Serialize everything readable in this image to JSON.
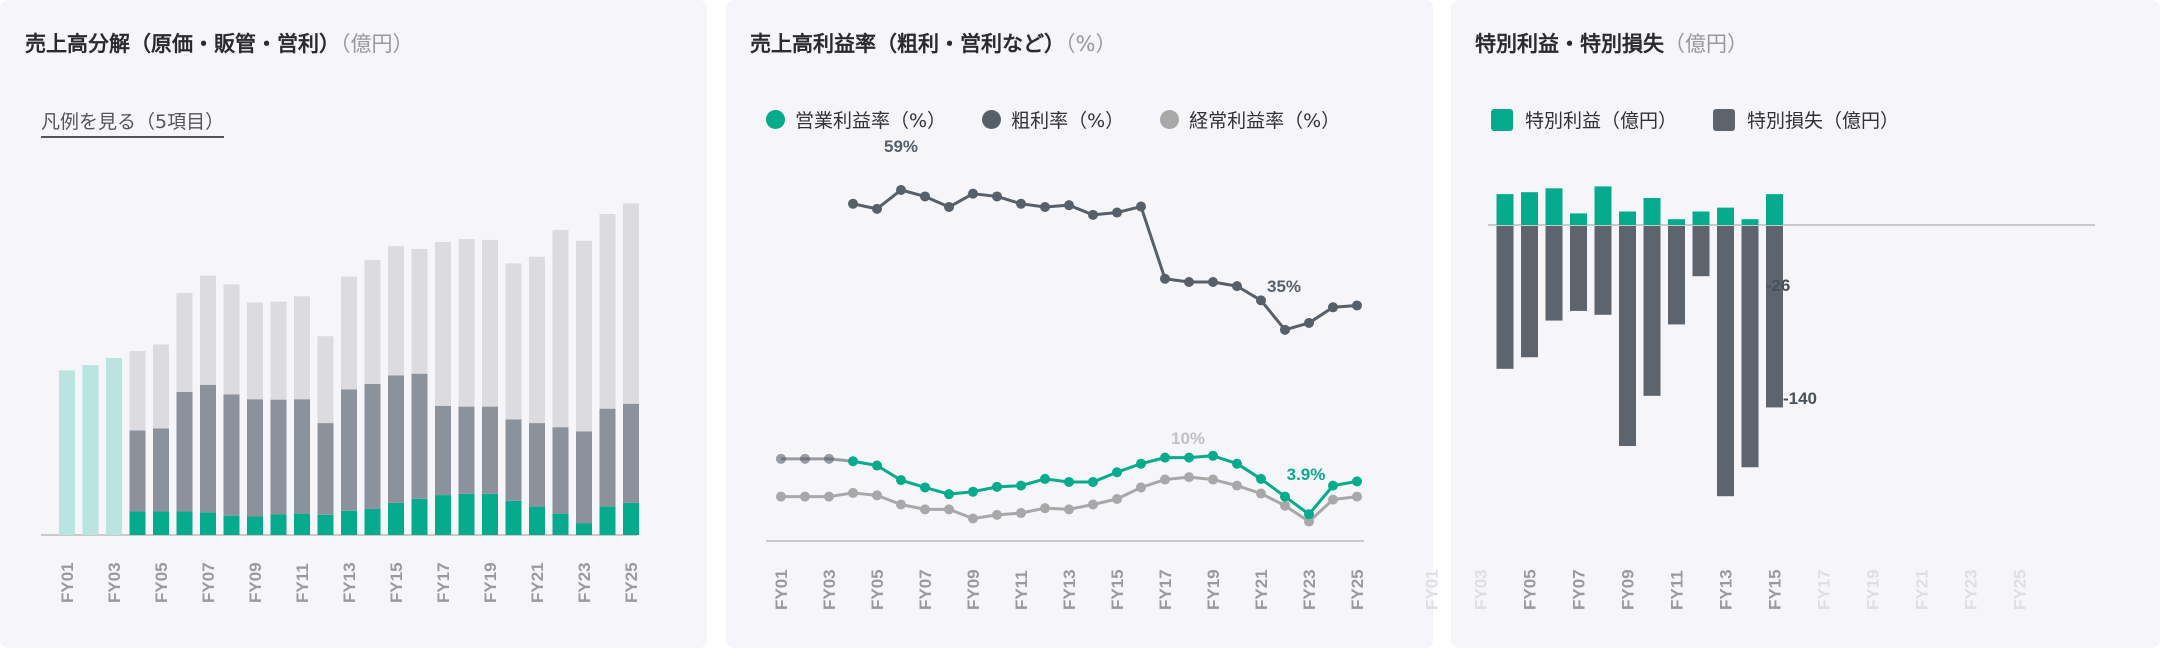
{
  "colors": {
    "panel_bg": "#f5f5fa",
    "operating_profit": "#05ab8c",
    "middle_segment": "#8c929b",
    "top_segment": "#dcdce0",
    "early_total": "#b9e4df",
    "gross_margin": "#575f6a",
    "ordinary_margin": "#a8a8a8",
    "special_loss": "#5d646d",
    "axis": "#bbbbbb",
    "tick_active": "#9a9a9a",
    "tick_inactive": "#dedee3"
  },
  "panels": [
    {
      "title": "売上高分解（原価・販管・営利）",
      "unit": "（億円）",
      "legend_link": "凡例を見る（5項目）"
    },
    {
      "title": "売上高利益率（粗利・営利など）",
      "unit": "（%）",
      "legend": [
        {
          "label": "営業利益率（%）",
          "icon": "circle"
        },
        {
          "label": "粗利率（%）",
          "icon": "circle"
        },
        {
          "label": "経常利益率（%）",
          "icon": "circle"
        }
      ]
    },
    {
      "title": "特別利益・特別損失",
      "unit": "（億円）",
      "legend": [
        {
          "label": "特別利益（億円）",
          "icon": "square"
        },
        {
          "label": "特別損失（億円）",
          "icon": "square"
        }
      ]
    }
  ],
  "chart_data": [
    {
      "type": "bar",
      "stacked": true,
      "categories": [
        "FY01",
        "FY02",
        "FY03",
        "FY04",
        "FY05",
        "FY06",
        "FY07",
        "FY08",
        "FY09",
        "FY10",
        "FY11",
        "FY12",
        "FY13",
        "FY14",
        "FY15",
        "FY16",
        "FY17",
        "FY18",
        "FY19",
        "FY20",
        "FY21",
        "FY22",
        "FY23",
        "FY24",
        "FY25"
      ],
      "tick_labels": [
        "FY01",
        "FY03",
        "FY05",
        "FY07",
        "FY09",
        "FY11",
        "FY13",
        "FY15",
        "FY17",
        "FY19",
        "FY21",
        "FY23",
        "FY25"
      ],
      "early_totals": [
        400,
        413,
        430
      ],
      "series": [
        {
          "values": [
            null,
            null,
            null,
            57,
            57,
            57,
            55,
            47,
            45,
            50,
            52,
            49,
            59,
            64,
            78,
            88,
            97,
            100,
            100,
            83,
            69,
            52,
            28,
            69,
            78
          ]
        },
        {
          "values": [
            null,
            null,
            null,
            197,
            202,
            291,
            310,
            295,
            285,
            279,
            278,
            223,
            295,
            303,
            310,
            304,
            217,
            212,
            212,
            198,
            203,
            210,
            224,
            238,
            241
          ]
        },
        {
          "values": [
            null,
            null,
            null,
            193,
            204,
            240,
            265,
            267,
            235,
            238,
            250,
            211,
            274,
            301,
            314,
            303,
            398,
            407,
            405,
            379,
            404,
            479,
            463,
            473,
            487
          ]
        }
      ],
      "y_axis_shown": false,
      "grid": false
    },
    {
      "type": "line",
      "categories": [
        "FY01",
        "FY02",
        "FY03",
        "FY04",
        "FY05",
        "FY06",
        "FY07",
        "FY08",
        "FY09",
        "FY10",
        "FY11",
        "FY12",
        "FY13",
        "FY14",
        "FY15",
        "FY16",
        "FY17",
        "FY18",
        "FY19",
        "FY20",
        "FY21",
        "FY22",
        "FY23",
        "FY24",
        "FY25"
      ],
      "tick_labels": [
        "FY01",
        "FY03",
        "FY05",
        "FY07",
        "FY09",
        "FY11",
        "FY13",
        "FY15",
        "FY17",
        "FY19",
        "FY21",
        "FY23",
        "FY25"
      ],
      "series": [
        {
          "name": "営業利益率（%）",
          "values": [
            13.0,
            13.0,
            13.0,
            12.6,
            11.9,
            9.5,
            8.3,
            7.2,
            7.6,
            8.4,
            8.6,
            9.7,
            9.2,
            9.2,
            10.8,
            12.2,
            13.2,
            13.2,
            13.5,
            12.2,
            9.7,
            6.8,
            3.9,
            8.6,
            9.3
          ]
        },
        {
          "name": "粗利率（%）",
          "values": [
            null,
            null,
            null,
            56.0,
            54.9,
            59.0,
            57.6,
            55.3,
            58.2,
            57.6,
            56.0,
            55.3,
            55.7,
            53.6,
            54.1,
            55.4,
            39.7,
            39.0,
            39.0,
            38.1,
            35.0,
            28.6,
            30.1,
            33.5,
            33.9
          ]
        },
        {
          "name": "経常利益率（%）",
          "values": [
            6.8,
            6.8,
            6.8,
            7.4,
            7.0,
            5.5,
            4.7,
            4.7,
            3.2,
            3.8,
            4.1,
            4.9,
            4.7,
            5.5,
            6.4,
            8.3,
            9.6,
            10.0,
            9.6,
            8.6,
            7.3,
            5.3,
            2.7,
            6.3,
            6.8
          ]
        }
      ],
      "annotations": [
        {
          "text": "59%",
          "series": "粗利率（%）",
          "x": "FY06"
        },
        {
          "text": "35%",
          "series": "粗利率（%）",
          "x": "FY21"
        },
        {
          "text": "10%",
          "series": "経常利益率（%）",
          "x": "FY18"
        },
        {
          "text": "3.9%",
          "series": "営業利益率（%）",
          "x": "FY23"
        }
      ],
      "legend_position": "top-left",
      "grid": false
    },
    {
      "type": "bar",
      "categories": [
        "FY01",
        "FY02",
        "FY03",
        "FY04",
        "FY05",
        "FY06",
        "FY07",
        "FY08",
        "FY09",
        "FY10",
        "FY11",
        "FY12",
        "FY13",
        "FY14",
        "FY15",
        "FY16",
        "FY17",
        "FY18",
        "FY19",
        "FY20",
        "FY21",
        "FY22",
        "FY23",
        "FY24",
        "FY25"
      ],
      "tick_labels": [
        "FY01",
        "FY03",
        "FY05",
        "FY07",
        "FY09",
        "FY11",
        "FY13",
        "FY15",
        "FY17",
        "FY19",
        "FY21",
        "FY23",
        "FY25"
      ],
      "series": [
        {
          "name": "特別利益（億円）",
          "values": [
            null,
            null,
            null,
            16,
            17,
            19,
            6,
            20,
            7,
            14,
            3,
            7,
            9,
            3,
            16,
            null,
            null,
            null,
            null,
            null,
            null,
            null,
            null,
            null,
            null
          ]
        },
        {
          "name": "特別損失（億円）",
          "values": [
            null,
            null,
            null,
            -74,
            -68,
            -49,
            -44,
            -46,
            -114,
            -88,
            -51,
            -26,
            -140,
            -125,
            -94,
            null,
            null,
            null,
            null,
            null,
            null,
            null,
            null,
            null,
            null
          ]
        }
      ],
      "annotations": [
        {
          "text": "-26",
          "x": "FY12"
        },
        {
          "text": "-140",
          "x": "FY13"
        }
      ],
      "legend_position": "top-left",
      "grid": false
    }
  ]
}
